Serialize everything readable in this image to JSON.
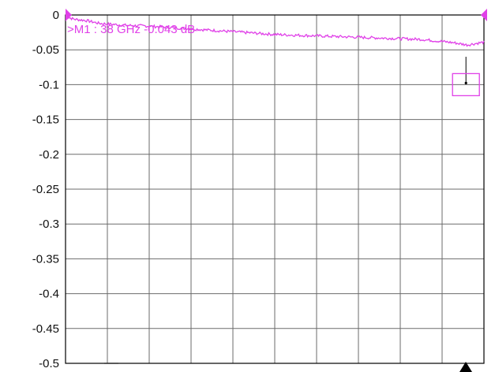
{
  "colors": {
    "background": "#ffffff",
    "frame": "#000000",
    "grid": "#6b6b6b",
    "trace": "#e040e8",
    "tick_text": "#111111",
    "marker_arrow": "#000000"
  },
  "marker": {
    "label": ">M1 :  38 GHz  -0.043  dB",
    "frequency_ghz": 38,
    "value_db": -0.043
  },
  "chart_data": {
    "type": "line",
    "title": "",
    "xlabel": "",
    "ylabel": "",
    "ylim": [
      -0.5,
      0
    ],
    "y_ticks": [
      0,
      -0.05,
      -0.1,
      -0.15,
      -0.2,
      -0.25,
      -0.3,
      -0.35,
      -0.4,
      -0.45,
      -0.5
    ],
    "y_tick_labels": [
      "0",
      "-0.05",
      "-0.1",
      "-0.15",
      "-0.2",
      "-0.25",
      "-0.3",
      "-0.35",
      "-0.4",
      "-0.45",
      "-0.5"
    ],
    "x_divisions": 10,
    "grid": true,
    "legend": "none",
    "series": [
      {
        "x": [
          0,
          0.02,
          0.05,
          0.08,
          0.1,
          0.15,
          0.2,
          0.25,
          0.3,
          0.35,
          0.4,
          0.45,
          0.5,
          0.55,
          0.6,
          0.65,
          0.7,
          0.75,
          0.8,
          0.85,
          0.9,
          0.93,
          0.96,
          1.0
        ],
        "values": [
          -0.002,
          -0.006,
          -0.008,
          -0.012,
          -0.013,
          -0.015,
          -0.016,
          -0.018,
          -0.02,
          -0.022,
          -0.024,
          -0.026,
          -0.028,
          -0.029,
          -0.03,
          -0.031,
          -0.032,
          -0.033,
          -0.034,
          -0.035,
          -0.038,
          -0.04,
          -0.043,
          -0.039
        ]
      }
    ]
  }
}
